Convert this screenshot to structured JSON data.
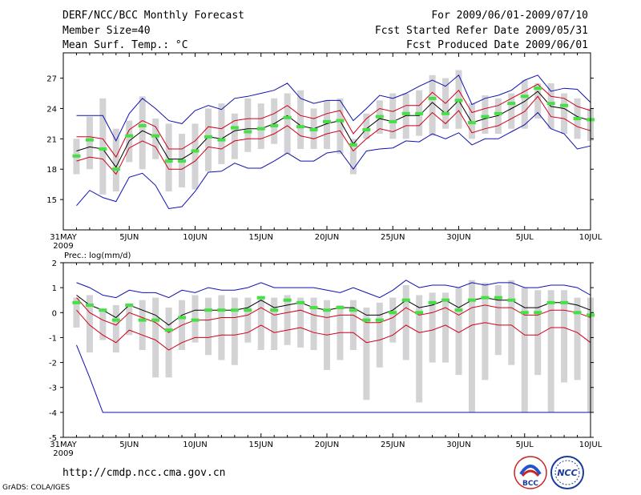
{
  "header": {
    "title": "DERF/NCC/BCC Monthly Forecast",
    "member_size": "Member Size=40",
    "variable_top": "Mean Surf. Temp.: °C",
    "period": "For 2009/06/01-2009/07/10",
    "fcst_started": "Fcst Started Refer Date 2009/05/31",
    "fcst_produced": "Fcst Produced Date 2009/06/01"
  },
  "footer": {
    "url": "http://cmdp.ncc.cma.gov.cn",
    "credit": "GrADS: COLA/IGES",
    "logos": [
      {
        "name": "bcc-logo",
        "text": "BCC"
      },
      {
        "name": "ncc-logo",
        "text": "NCC"
      }
    ]
  },
  "colors": {
    "bar": "#d3d3d5",
    "ensemble_mean": "#000000",
    "spread": "#d0001a",
    "envelope": "#1010b0",
    "observed": "#44e044"
  },
  "chart_data": [
    {
      "type": "line",
      "title": "Mean Surf. Temp.: °C",
      "x_tick_labels": [
        "31MAY\n2009",
        "5JUN",
        "10JUN",
        "15JUN",
        "20JUN",
        "25JUN",
        "30JUN",
        "5JUL",
        "10JUL"
      ],
      "x_tick_days": [
        0,
        5,
        10,
        15,
        20,
        25,
        30,
        35,
        40
      ],
      "y_ticks": [
        15,
        18,
        21,
        24,
        27
      ],
      "ylim": [
        12,
        29.5
      ],
      "days": [
        1,
        2,
        3,
        4,
        5,
        6,
        7,
        8,
        9,
        10,
        11,
        12,
        13,
        14,
        15,
        16,
        17,
        18,
        19,
        20,
        21,
        22,
        23,
        24,
        25,
        26,
        27,
        28,
        29,
        30,
        31,
        32,
        33,
        34,
        35,
        36,
        37,
        38,
        39,
        40
      ],
      "series": [
        {
          "name": "ensemble mean",
          "values": [
            19.8,
            20.2,
            20.0,
            18.2,
            20.8,
            21.8,
            21.2,
            19.0,
            19.0,
            19.8,
            21.2,
            21.0,
            21.8,
            22.0,
            22.0,
            22.5,
            23.3,
            22.3,
            22.0,
            22.5,
            22.8,
            20.5,
            22.0,
            23.0,
            22.7,
            23.3,
            23.3,
            24.6,
            23.5,
            24.8,
            22.6,
            23.0,
            23.3,
            24.0,
            24.7,
            25.7,
            24.2,
            24.0,
            23.2,
            22.8
          ]
        },
        {
          "name": "upper spread",
          "values": [
            21.2,
            21.2,
            21.0,
            19.2,
            21.9,
            22.8,
            22.2,
            20.0,
            20.0,
            20.8,
            22.2,
            22.0,
            22.8,
            23.0,
            23.0,
            23.5,
            24.3,
            23.3,
            23.0,
            23.5,
            23.8,
            21.5,
            23.0,
            24.0,
            23.7,
            24.3,
            24.3,
            25.6,
            24.5,
            25.8,
            23.6,
            24.0,
            24.3,
            25.0,
            25.7,
            26.4,
            25.2,
            25.0,
            24.2,
            23.8
          ]
        },
        {
          "name": "lower spread",
          "values": [
            18.8,
            19.2,
            19.0,
            17.5,
            20.1,
            20.8,
            20.2,
            18.0,
            18.0,
            18.8,
            20.2,
            20.0,
            20.8,
            21.0,
            21.0,
            21.5,
            22.3,
            21.3,
            21.0,
            21.5,
            21.8,
            19.8,
            21.0,
            22.0,
            21.7,
            22.3,
            22.3,
            23.6,
            22.5,
            23.8,
            21.6,
            22.0,
            22.3,
            23.0,
            23.7,
            25.2,
            23.2,
            23.0,
            22.2,
            21.8
          ]
        },
        {
          "name": "ensemble max",
          "values": [
            23.3,
            23.3,
            23.3,
            20.8,
            23.5,
            25.0,
            24.0,
            22.8,
            22.5,
            23.8,
            24.3,
            23.9,
            25.0,
            25.2,
            25.5,
            25.8,
            26.5,
            25.0,
            24.5,
            24.8,
            24.8,
            22.8,
            24.0,
            25.3,
            25.0,
            25.5,
            26.2,
            26.8,
            26.2,
            27.3,
            24.4,
            25.0,
            25.3,
            25.8,
            26.8,
            27.3,
            25.7,
            26.0,
            25.9,
            24.6
          ]
        },
        {
          "name": "ensemble min",
          "values": [
            14.4,
            15.9,
            15.2,
            14.8,
            17.2,
            17.6,
            16.4,
            14.1,
            14.3,
            15.8,
            17.7,
            17.8,
            18.6,
            18.1,
            18.1,
            18.8,
            19.6,
            18.8,
            18.8,
            19.6,
            19.8,
            18.0,
            19.8,
            20.0,
            20.1,
            20.8,
            20.7,
            21.5,
            21.0,
            21.6,
            20.4,
            21.0,
            21.0,
            21.7,
            22.4,
            23.6,
            22.0,
            21.5,
            20.0,
            20.3
          ]
        },
        {
          "name": "observed",
          "values": [
            19.3,
            20.9,
            20.0,
            18.0,
            21.3,
            22.3,
            21.3,
            18.8,
            18.8,
            19.8,
            21.2,
            20.9,
            22.1,
            21.7,
            22.0,
            22.3,
            23.1,
            22.2,
            21.9,
            22.7,
            22.8,
            20.4,
            21.9,
            23.2,
            22.7,
            23.5,
            23.5,
            25.0,
            23.5,
            24.8,
            22.6,
            23.2,
            23.5,
            24.5,
            25.2,
            26.0,
            24.5,
            24.3,
            23.0,
            22.9
          ]
        }
      ],
      "bars": {
        "name": "ensemble member range",
        "low": [
          17.5,
          18.0,
          15.5,
          15.8,
          18.7,
          18.0,
          19.0,
          15.8,
          16.2,
          16.0,
          17.8,
          18.5,
          19.0,
          19.7,
          20.0,
          20.5,
          19.5,
          20.0,
          20.0,
          20.0,
          19.5,
          17.5,
          21.0,
          21.5,
          21.0,
          21.0,
          21.3,
          21.3,
          22.0,
          22.0,
          21.0,
          21.5,
          21.5,
          22.0,
          22.0,
          23.0,
          22.0,
          21.5,
          21.0,
          20.8
        ],
        "high": [
          21.0,
          23.2,
          25.0,
          22.0,
          22.8,
          25.2,
          23.0,
          22.5,
          21.5,
          22.5,
          24.0,
          24.5,
          23.5,
          25.0,
          24.5,
          25.0,
          25.5,
          25.8,
          24.0,
          24.8,
          25.0,
          21.0,
          23.5,
          24.8,
          25.5,
          25.5,
          25.8,
          27.3,
          27.0,
          27.8,
          24.5,
          25.3,
          25.0,
          25.5,
          26.8,
          26.5,
          26.5,
          25.5,
          25.0,
          24.0
        ]
      }
    },
    {
      "type": "line",
      "title": "Prec.: log(mm/d)",
      "x_tick_labels": [
        "31MAY\n2009",
        "5JUN",
        "10JUN",
        "15JUN",
        "20JUN",
        "25JUN",
        "30JUN",
        "5JUL",
        "10JUL"
      ],
      "x_tick_days": [
        0,
        5,
        10,
        15,
        20,
        25,
        30,
        35,
        40
      ],
      "y_ticks": [
        -5,
        -4,
        -3,
        -2,
        -1,
        0,
        1,
        2
      ],
      "ylim": [
        -5,
        2
      ],
      "days": [
        1,
        2,
        3,
        4,
        5,
        6,
        7,
        8,
        9,
        10,
        11,
        12,
        13,
        14,
        15,
        16,
        17,
        18,
        19,
        20,
        21,
        22,
        23,
        24,
        25,
        26,
        27,
        28,
        29,
        30,
        31,
        32,
        33,
        34,
        35,
        36,
        37,
        38,
        39,
        40
      ],
      "series": [
        {
          "name": "ensemble mean",
          "values": [
            0.7,
            0.3,
            0.1,
            -0.2,
            0.3,
            0.1,
            -0.1,
            -0.5,
            -0.1,
            0.1,
            0.1,
            0.1,
            0.1,
            0.2,
            0.5,
            0.2,
            0.3,
            0.4,
            0.2,
            0.1,
            0.2,
            0.2,
            -0.1,
            -0.1,
            0.1,
            0.5,
            0.2,
            0.3,
            0.5,
            0.2,
            0.5,
            0.6,
            0.5,
            0.5,
            0.2,
            0.2,
            0.4,
            0.4,
            0.3,
            0.1
          ]
        },
        {
          "name": "upper spread",
          "values": [
            0.6,
            0.0,
            -0.3,
            -0.5,
            0.0,
            -0.2,
            -0.4,
            -0.8,
            -0.5,
            -0.3,
            -0.3,
            -0.2,
            -0.2,
            -0.1,
            0.2,
            -0.1,
            0.0,
            0.1,
            -0.1,
            -0.2,
            -0.1,
            -0.1,
            -0.4,
            -0.4,
            -0.2,
            0.2,
            -0.1,
            0.0,
            0.2,
            -0.1,
            0.2,
            0.3,
            0.2,
            0.2,
            -0.1,
            -0.1,
            0.1,
            0.1,
            0.0,
            -0.2
          ]
        },
        {
          "name": "lower spread",
          "values": [
            0.1,
            -0.5,
            -0.9,
            -1.2,
            -0.7,
            -0.9,
            -1.1,
            -1.5,
            -1.2,
            -1.0,
            -1.0,
            -0.9,
            -0.9,
            -0.8,
            -0.5,
            -0.8,
            -0.7,
            -0.6,
            -0.8,
            -0.9,
            -0.8,
            -0.8,
            -1.2,
            -1.1,
            -0.9,
            -0.5,
            -0.8,
            -0.7,
            -0.5,
            -0.8,
            -0.5,
            -0.4,
            -0.5,
            -0.5,
            -0.9,
            -0.9,
            -0.6,
            -0.6,
            -0.8,
            -1.2
          ]
        },
        {
          "name": "ensemble max",
          "values": [
            1.2,
            1.0,
            0.7,
            0.6,
            0.9,
            0.8,
            0.8,
            0.6,
            0.9,
            0.8,
            1.0,
            0.9,
            0.9,
            1.0,
            1.2,
            1.0,
            1.0,
            1.0,
            1.0,
            0.9,
            0.8,
            1.0,
            0.8,
            0.6,
            0.9,
            1.3,
            1.0,
            1.1,
            1.1,
            1.0,
            1.2,
            1.1,
            1.2,
            1.2,
            1.0,
            1.0,
            1.1,
            1.1,
            1.0,
            0.7
          ]
        },
        {
          "name": "ensemble min",
          "values": [
            -1.3,
            -2.6,
            -4.0,
            -4.0,
            -4.0,
            -4.0,
            -4.0,
            -4.0,
            -4.0,
            -4.0,
            -4.0,
            -4.0,
            -4.0,
            -4.0,
            -4.0,
            -4.0,
            -4.0,
            -4.0,
            -4.0,
            -4.0,
            -4.0,
            -4.0,
            -4.0,
            -4.0,
            -4.0,
            -4.0,
            -4.0,
            -4.0,
            -4.0,
            -4.0,
            -4.0,
            -4.0,
            -4.0,
            -4.0,
            -4.0,
            -4.0,
            -4.0,
            -4.0,
            -4.0,
            -4.0
          ]
        },
        {
          "name": "observed",
          "values": [
            0.4,
            0.3,
            0.1,
            -0.3,
            0.3,
            -0.3,
            -0.3,
            -0.7,
            -0.2,
            -0.3,
            0.1,
            0.1,
            0.1,
            0.1,
            0.6,
            0.1,
            0.5,
            0.4,
            0.2,
            0.1,
            0.2,
            0.1,
            -0.3,
            -0.3,
            0.0,
            0.5,
            0.0,
            0.4,
            0.5,
            0.1,
            0.5,
            0.6,
            0.6,
            0.5,
            0.0,
            0.0,
            0.4,
            0.4,
            0.0,
            -0.1
          ]
        }
      ],
      "bars": {
        "name": "ensemble member range",
        "low": [
          -0.6,
          -1.6,
          -1.1,
          -1.6,
          -0.9,
          -1.5,
          -2.6,
          -2.6,
          -1.5,
          -1.2,
          -1.7,
          -1.9,
          -2.1,
          -1.2,
          -1.5,
          -1.5,
          -1.3,
          -1.4,
          -1.5,
          -2.3,
          -1.9,
          -1.5,
          -3.5,
          -2.2,
          -1.2,
          -1.9,
          -3.6,
          -2.0,
          -2.0,
          -2.5,
          -4.0,
          -2.7,
          -1.7,
          -2.1,
          -4.0,
          -2.5,
          -4.0,
          -2.8,
          -2.7,
          -4.0
        ],
        "high": [
          0.6,
          0.7,
          0.1,
          0.3,
          0.3,
          0.5,
          0.6,
          0.2,
          0.5,
          0.7,
          0.6,
          0.7,
          0.6,
          0.6,
          0.6,
          0.6,
          0.7,
          0.6,
          0.6,
          0.5,
          0.3,
          0.5,
          0.2,
          0.4,
          0.6,
          1.1,
          0.7,
          0.8,
          0.8,
          1.0,
          1.3,
          1.2,
          1.1,
          1.3,
          1.0,
          0.9,
          0.9,
          0.9,
          0.6,
          0.6
        ]
      }
    }
  ]
}
